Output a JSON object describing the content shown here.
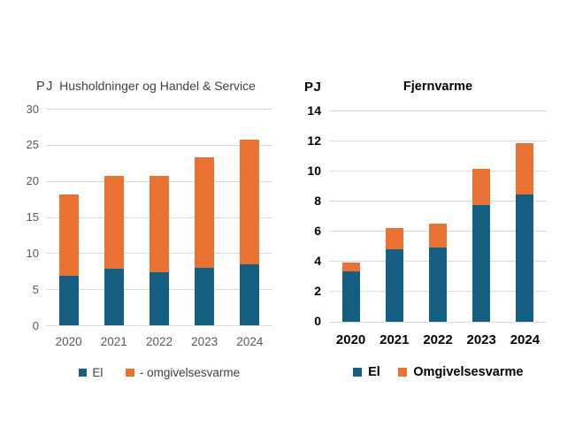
{
  "chart_data": [
    {
      "type": "bar",
      "stacked": true,
      "title": "Husholdninger og Handel & Service",
      "unit_label": "PJ",
      "categories": [
        "2020",
        "2021",
        "2022",
        "2023",
        "2024"
      ],
      "series": [
        {
          "name": "El",
          "color": "#156082",
          "values": [
            6.9,
            7.8,
            7.4,
            8.0,
            8.5
          ]
        },
        {
          "name": "- omgivelsesvarme",
          "color": "#E97132",
          "values": [
            11.2,
            12.9,
            13.3,
            15.3,
            17.2
          ]
        }
      ],
      "totals": [
        18.1,
        20.7,
        20.7,
        23.3,
        25.7
      ],
      "ylim": [
        0,
        30
      ],
      "yticks": [
        0,
        5,
        10,
        15,
        20,
        25,
        30
      ],
      "grid": true,
      "legend_position": "bottom",
      "legend": [
        "El",
        "- omgivelsesvarme"
      ]
    },
    {
      "type": "bar",
      "stacked": true,
      "title": "Fjernvarme",
      "unit_label": "PJ",
      "categories": [
        "2020",
        "2021",
        "2022",
        "2023",
        "2024"
      ],
      "series": [
        {
          "name": "El",
          "color": "#156082",
          "values": [
            3.3,
            4.8,
            4.9,
            7.7,
            8.4
          ]
        },
        {
          "name": "Omgivelsesvarme",
          "color": "#E97132",
          "values": [
            0.6,
            1.4,
            1.6,
            2.4,
            3.4
          ]
        }
      ],
      "totals": [
        3.9,
        6.2,
        6.5,
        10.1,
        11.8
      ],
      "ylim": [
        0,
        14
      ],
      "yticks": [
        0,
        2,
        4,
        6,
        8,
        10,
        12,
        14
      ],
      "grid": true,
      "legend_position": "bottom",
      "legend": [
        "El",
        "Omgivelsesvarme"
      ]
    }
  ],
  "colors": {
    "el": "#156082",
    "omgivelsesvarme": "#E97132",
    "gridline": "#d9d9d9"
  }
}
